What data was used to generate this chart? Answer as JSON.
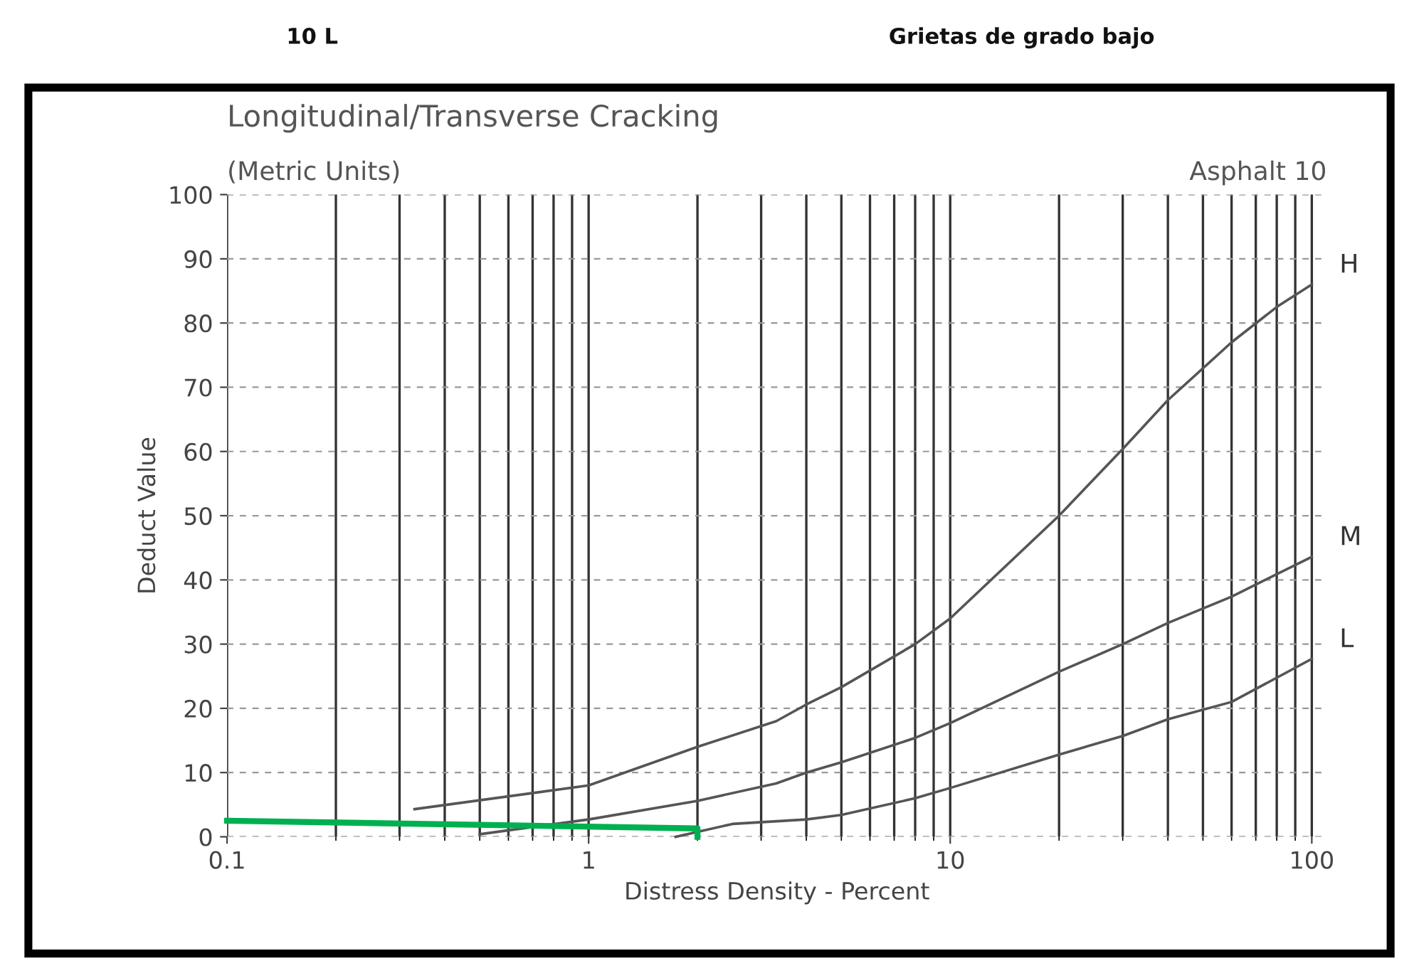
{
  "chart_data": {
    "type": "line",
    "title": "Longitudinal/Transverse Cracking",
    "subtitle": "(Metric Units)",
    "xlabel": "Distress Density - Percent",
    "ylabel": "Deduct Value",
    "annotations": [
      "10 L",
      "Grietas de grado bajo",
      "Asphalt 10"
    ],
    "log": "x",
    "xlim": [
      0.1,
      110
    ],
    "xticks": [
      0.1,
      1,
      10,
      100
    ],
    "ylim": [
      0,
      100
    ],
    "yticks": [
      0,
      10,
      20,
      30,
      40,
      50,
      60,
      70,
      80,
      90,
      100
    ],
    "grid": true,
    "line_style": "solid",
    "marker": "none",
    "series": [
      {
        "name": "H",
        "color": "#555555",
        "x": [
          0.33,
          1,
          2,
          3.3,
          4,
          5,
          8,
          10,
          20,
          30,
          40,
          60,
          80,
          100
        ],
        "values": [
          4.3,
          8,
          14,
          18,
          20.6,
          23.3,
          30,
          34,
          50,
          60.4,
          68,
          77,
          82.5,
          86
        ]
      },
      {
        "name": "M",
        "color": "#555555",
        "x": [
          0.5,
          1,
          2,
          3.3,
          4,
          5,
          8,
          10,
          20,
          30,
          40,
          60,
          100
        ],
        "values": [
          0.4,
          2.7,
          5.6,
          8.3,
          10,
          11.6,
          15.4,
          17.7,
          25.7,
          30,
          33.3,
          37.4,
          43.6
        ]
      },
      {
        "name": "L",
        "color": "#555555",
        "x": [
          1.74,
          2.5,
          4,
          5,
          8,
          10,
          20,
          30,
          40,
          60,
          100
        ],
        "values": [
          0,
          2,
          2.7,
          3.4,
          6,
          7.6,
          12.8,
          15.7,
          18.3,
          21,
          27.7
        ]
      },
      {
        "color": "#00b050",
        "x": [
          0.1,
          2,
          2
        ],
        "values": [
          2.5,
          1.3,
          0
        ]
      }
    ]
  }
}
